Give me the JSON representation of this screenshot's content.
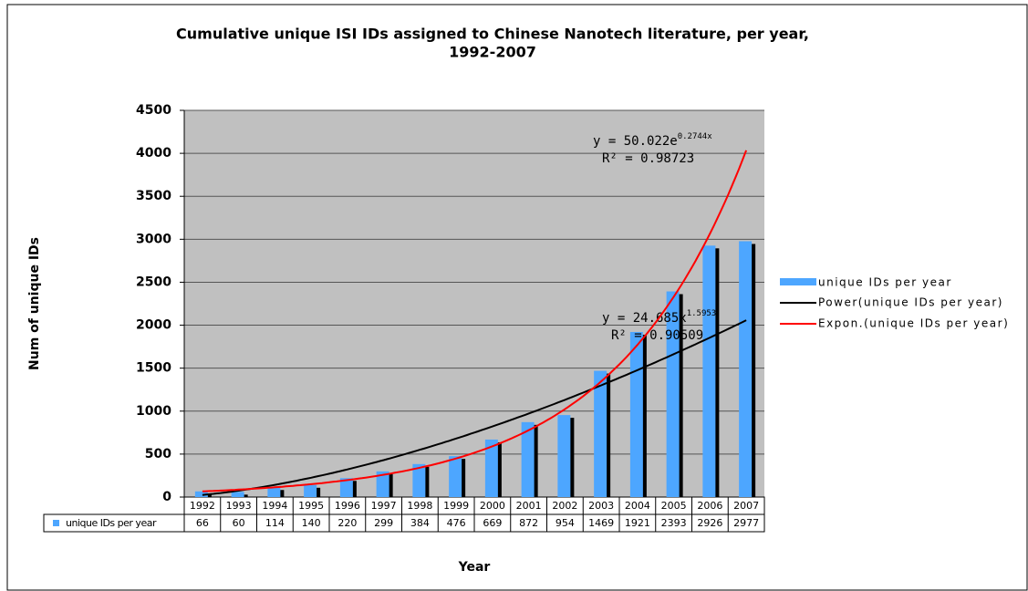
{
  "chart_data": {
    "type": "bar",
    "title": [
      "Cumulative unique ISI IDs assigned to Chinese Nanotech literature, per year,",
      "1992-2007"
    ],
    "x_label": "Year",
    "y_label": "Num of unique IDs",
    "categories": [
      "1992",
      "1993",
      "1994",
      "1995",
      "1996",
      "1997",
      "1998",
      "1999",
      "2000",
      "2001",
      "2002",
      "2003",
      "2004",
      "2005",
      "2006",
      "2007"
    ],
    "series": [
      {
        "name": "unique IDs per year",
        "color": "#4da6ff",
        "values": [
          66,
          60,
          114,
          140,
          220,
          299,
          384,
          476,
          669,
          872,
          954,
          1469,
          1921,
          2393,
          2926,
          2977
        ]
      }
    ],
    "trendlines": [
      {
        "name": "Power(unique IDs per year)",
        "kind": "power",
        "color": "#000000",
        "a": 24.685,
        "b": 1.5953,
        "equation": [
          "y = 24.685x",
          "1.5953"
        ],
        "r2_label": "R² = 0.90509"
      },
      {
        "name": "Expon.(unique IDs per year)",
        "kind": "exp",
        "color": "#ff0000",
        "a": 50.022,
        "b": 0.2744,
        "equation": [
          "y = 50.022e",
          "0.2744x"
        ],
        "r2_label": "R² = 0.98723"
      }
    ],
    "ylim": [
      0,
      4500
    ],
    "yticks": [
      0,
      500,
      1000,
      1500,
      2000,
      2500,
      3000,
      3500,
      4000,
      4500
    ],
    "grid": true,
    "legend": "right"
  }
}
